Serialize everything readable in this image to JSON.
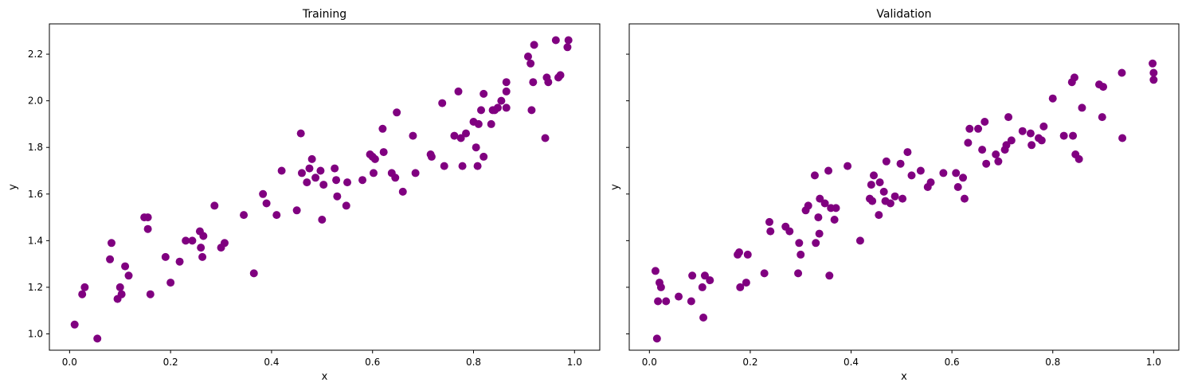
{
  "chart_data": [
    {
      "type": "scatter",
      "title": "Training",
      "xlabel": "x",
      "ylabel": "y",
      "xlim": [
        -0.04,
        1.05
      ],
      "ylim": [
        0.93,
        2.33
      ],
      "xticks": [
        0.0,
        0.2,
        0.4,
        0.6,
        0.8,
        1.0
      ],
      "xtick_labels": [
        "0.0",
        "0.2",
        "0.4",
        "0.6",
        "0.8",
        "1.0"
      ],
      "yticks": [
        1.0,
        1.2,
        1.4,
        1.6,
        1.8,
        2.0,
        2.2
      ],
      "ytick_labels": [
        "1.0",
        "1.2",
        "1.4",
        "1.6",
        "1.8",
        "2.0",
        "2.2"
      ],
      "grid": false,
      "color": "#800080",
      "points": [
        [
          0.01,
          1.04
        ],
        [
          0.025,
          1.17
        ],
        [
          0.03,
          1.2
        ],
        [
          0.055,
          0.98
        ],
        [
          0.08,
          1.32
        ],
        [
          0.083,
          1.39
        ],
        [
          0.095,
          1.15
        ],
        [
          0.1,
          1.2
        ],
        [
          0.103,
          1.17
        ],
        [
          0.11,
          1.29
        ],
        [
          0.117,
          1.25
        ],
        [
          0.148,
          1.5
        ],
        [
          0.155,
          1.5
        ],
        [
          0.155,
          1.45
        ],
        [
          0.16,
          1.17
        ],
        [
          0.19,
          1.33
        ],
        [
          0.2,
          1.22
        ],
        [
          0.218,
          1.31
        ],
        [
          0.23,
          1.4
        ],
        [
          0.243,
          1.4
        ],
        [
          0.258,
          1.44
        ],
        [
          0.26,
          1.37
        ],
        [
          0.263,
          1.33
        ],
        [
          0.265,
          1.42
        ],
        [
          0.287,
          1.55
        ],
        [
          0.3,
          1.37
        ],
        [
          0.307,
          1.39
        ],
        [
          0.345,
          1.51
        ],
        [
          0.365,
          1.26
        ],
        [
          0.383,
          1.6
        ],
        [
          0.39,
          1.56
        ],
        [
          0.41,
          1.51
        ],
        [
          0.42,
          1.7
        ],
        [
          0.45,
          1.53
        ],
        [
          0.458,
          1.86
        ],
        [
          0.46,
          1.69
        ],
        [
          0.47,
          1.65
        ],
        [
          0.475,
          1.71
        ],
        [
          0.48,
          1.75
        ],
        [
          0.487,
          1.67
        ],
        [
          0.497,
          1.7
        ],
        [
          0.5,
          1.49
        ],
        [
          0.503,
          1.64
        ],
        [
          0.525,
          1.71
        ],
        [
          0.528,
          1.66
        ],
        [
          0.53,
          1.59
        ],
        [
          0.548,
          1.55
        ],
        [
          0.55,
          1.65
        ],
        [
          0.58,
          1.66
        ],
        [
          0.595,
          1.77
        ],
        [
          0.6,
          1.76
        ],
        [
          0.602,
          1.69
        ],
        [
          0.605,
          1.75
        ],
        [
          0.62,
          1.88
        ],
        [
          0.622,
          1.78
        ],
        [
          0.638,
          1.69
        ],
        [
          0.645,
          1.67
        ],
        [
          0.648,
          1.95
        ],
        [
          0.66,
          1.61
        ],
        [
          0.68,
          1.85
        ],
        [
          0.685,
          1.69
        ],
        [
          0.715,
          1.77
        ],
        [
          0.717,
          1.76
        ],
        [
          0.738,
          1.99
        ],
        [
          0.742,
          1.72
        ],
        [
          0.762,
          1.85
        ],
        [
          0.77,
          2.04
        ],
        [
          0.775,
          1.84
        ],
        [
          0.778,
          1.72
        ],
        [
          0.785,
          1.86
        ],
        [
          0.8,
          1.91
        ],
        [
          0.805,
          1.8
        ],
        [
          0.808,
          1.72
        ],
        [
          0.81,
          1.9
        ],
        [
          0.815,
          1.96
        ],
        [
          0.82,
          1.76
        ],
        [
          0.82,
          2.03
        ],
        [
          0.835,
          1.9
        ],
        [
          0.838,
          1.96
        ],
        [
          0.842,
          1.96
        ],
        [
          0.848,
          1.97
        ],
        [
          0.855,
          2.0
        ],
        [
          0.865,
          1.97
        ],
        [
          0.865,
          2.04
        ],
        [
          0.865,
          2.08
        ],
        [
          0.908,
          2.19
        ],
        [
          0.913,
          2.16
        ],
        [
          0.915,
          1.96
        ],
        [
          0.918,
          2.08
        ],
        [
          0.92,
          2.24
        ],
        [
          0.942,
          1.84
        ],
        [
          0.945,
          2.1
        ],
        [
          0.948,
          2.08
        ],
        [
          0.963,
          2.26
        ],
        [
          0.968,
          2.1
        ],
        [
          0.972,
          2.11
        ],
        [
          0.986,
          2.23
        ],
        [
          0.988,
          2.26
        ]
      ]
    },
    {
      "type": "scatter",
      "title": "Validation",
      "xlabel": "x",
      "ylabel": "y",
      "xlim": [
        -0.04,
        1.05
      ],
      "ylim": [
        0.93,
        2.33
      ],
      "xticks": [
        0.0,
        0.2,
        0.4,
        0.6,
        0.8,
        1.0
      ],
      "xtick_labels": [
        "0.0",
        "0.2",
        "0.4",
        "0.6",
        "0.8",
        "1.0"
      ],
      "yticks": [
        1.0,
        1.2,
        1.4,
        1.6,
        1.8,
        2.0,
        2.2
      ],
      "ytick_labels": [],
      "grid": false,
      "color": "#800080",
      "points": [
        [
          0.012,
          1.27
        ],
        [
          0.015,
          0.98
        ],
        [
          0.017,
          1.14
        ],
        [
          0.02,
          1.22
        ],
        [
          0.023,
          1.2
        ],
        [
          0.033,
          1.14
        ],
        [
          0.058,
          1.16
        ],
        [
          0.083,
          1.14
        ],
        [
          0.085,
          1.25
        ],
        [
          0.105,
          1.2
        ],
        [
          0.107,
          1.07
        ],
        [
          0.11,
          1.25
        ],
        [
          0.12,
          1.23
        ],
        [
          0.175,
          1.34
        ],
        [
          0.178,
          1.35
        ],
        [
          0.18,
          1.2
        ],
        [
          0.192,
          1.22
        ],
        [
          0.195,
          1.34
        ],
        [
          0.228,
          1.26
        ],
        [
          0.238,
          1.48
        ],
        [
          0.24,
          1.44
        ],
        [
          0.27,
          1.46
        ],
        [
          0.278,
          1.44
        ],
        [
          0.295,
          1.26
        ],
        [
          0.297,
          1.39
        ],
        [
          0.3,
          1.34
        ],
        [
          0.31,
          1.53
        ],
        [
          0.315,
          1.55
        ],
        [
          0.328,
          1.68
        ],
        [
          0.33,
          1.39
        ],
        [
          0.335,
          1.5
        ],
        [
          0.337,
          1.43
        ],
        [
          0.338,
          1.58
        ],
        [
          0.348,
          1.56
        ],
        [
          0.355,
          1.7
        ],
        [
          0.357,
          1.25
        ],
        [
          0.36,
          1.54
        ],
        [
          0.367,
          1.49
        ],
        [
          0.37,
          1.54
        ],
        [
          0.393,
          1.72
        ],
        [
          0.418,
          1.4
        ],
        [
          0.437,
          1.58
        ],
        [
          0.44,
          1.64
        ],
        [
          0.442,
          1.57
        ],
        [
          0.445,
          1.68
        ],
        [
          0.455,
          1.51
        ],
        [
          0.457,
          1.65
        ],
        [
          0.465,
          1.61
        ],
        [
          0.468,
          1.57
        ],
        [
          0.47,
          1.74
        ],
        [
          0.478,
          1.56
        ],
        [
          0.487,
          1.59
        ],
        [
          0.498,
          1.73
        ],
        [
          0.502,
          1.58
        ],
        [
          0.512,
          1.78
        ],
        [
          0.52,
          1.68
        ],
        [
          0.538,
          1.7
        ],
        [
          0.552,
          1.63
        ],
        [
          0.558,
          1.65
        ],
        [
          0.583,
          1.69
        ],
        [
          0.608,
          1.69
        ],
        [
          0.612,
          1.63
        ],
        [
          0.622,
          1.67
        ],
        [
          0.625,
          1.58
        ],
        [
          0.632,
          1.82
        ],
        [
          0.635,
          1.88
        ],
        [
          0.652,
          1.88
        ],
        [
          0.66,
          1.79
        ],
        [
          0.665,
          1.91
        ],
        [
          0.668,
          1.73
        ],
        [
          0.687,
          1.77
        ],
        [
          0.692,
          1.74
        ],
        [
          0.705,
          1.79
        ],
        [
          0.708,
          1.81
        ],
        [
          0.712,
          1.93
        ],
        [
          0.718,
          1.83
        ],
        [
          0.74,
          1.87
        ],
        [
          0.756,
          1.86
        ],
        [
          0.758,
          1.81
        ],
        [
          0.772,
          1.84
        ],
        [
          0.778,
          1.83
        ],
        [
          0.782,
          1.89
        ],
        [
          0.8,
          2.01
        ],
        [
          0.822,
          1.85
        ],
        [
          0.838,
          2.08
        ],
        [
          0.84,
          1.85
        ],
        [
          0.843,
          2.1
        ],
        [
          0.845,
          1.77
        ],
        [
          0.852,
          1.75
        ],
        [
          0.858,
          1.97
        ],
        [
          0.892,
          2.07
        ],
        [
          0.898,
          1.93
        ],
        [
          0.9,
          2.06
        ],
        [
          0.937,
          2.12
        ],
        [
          0.938,
          1.84
        ],
        [
          0.998,
          2.16
        ],
        [
          1.0,
          2.09
        ],
        [
          1.0,
          2.12
        ]
      ]
    }
  ]
}
